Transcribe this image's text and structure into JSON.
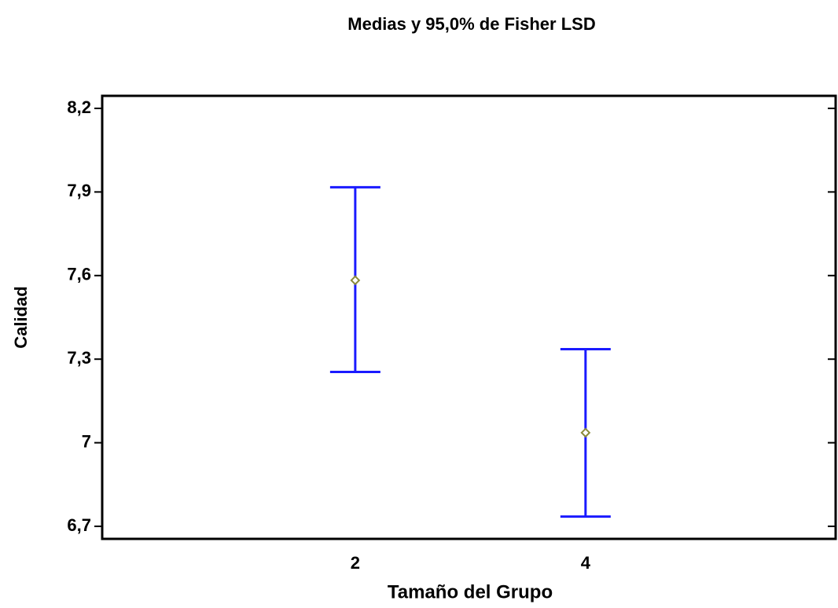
{
  "chart_data": {
    "type": "errorbar",
    "title": "Medias y 95,0% de Fisher LSD",
    "x_label": "Tamaño del Grupo",
    "y_label": "Calidad",
    "categories": [
      "2",
      "4"
    ],
    "values": [
      7.583,
      7.036
    ],
    "lower": [
      7.254,
      6.735
    ],
    "upper": [
      7.917,
      7.336
    ],
    "color": "#1a1aff",
    "marker_color": "#8a8a3a",
    "ylim": [
      6.655,
      8.245
    ],
    "yticks": [
      {
        "value": 6.7,
        "label": "6,7"
      },
      7,
      {
        "value": 7.3,
        "label": "7,3"
      },
      {
        "value": 7.6,
        "label": "7,6"
      },
      {
        "value": 7.9,
        "label": "7,9"
      },
      {
        "value": 8.2,
        "label": "8,2"
      }
    ]
  }
}
